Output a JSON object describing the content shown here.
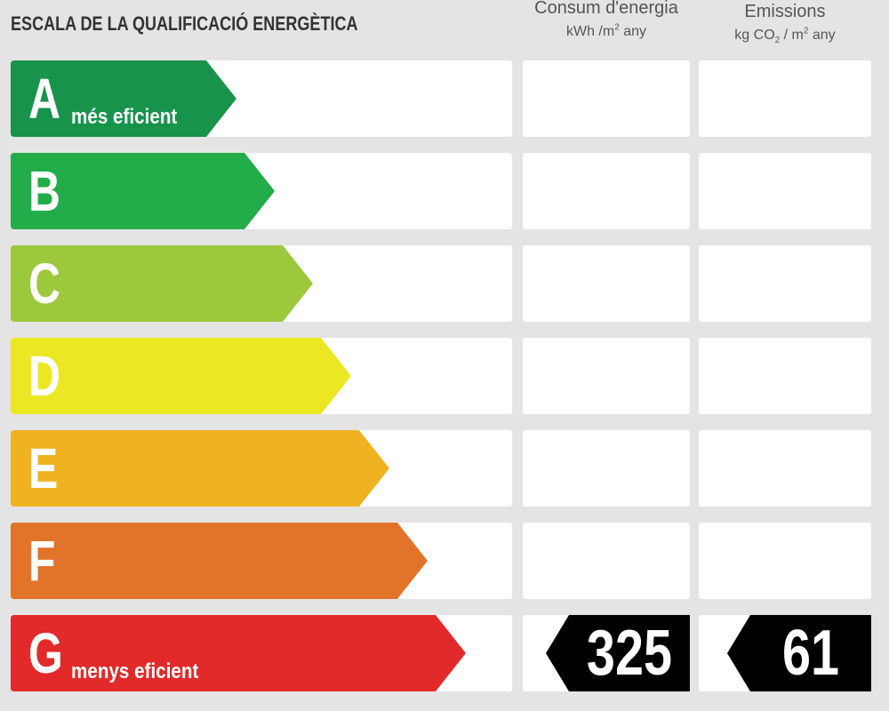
{
  "title": "ESCALA DE LA QUALIFICACIÓ ENERGÈTICA",
  "columns": {
    "consum": {
      "line1": "Consum d'energia",
      "unit_pre": "kWh /m",
      "unit_sup": "2",
      "unit_post": " any"
    },
    "emissions": {
      "line1": "Emissions",
      "unit_pre": "kg CO",
      "unit_sub": "2",
      "unit_mid": " / m",
      "unit_sup": "2",
      "unit_post": " any"
    }
  },
  "classes": [
    {
      "letter": "A",
      "note": "més eficient",
      "color": "#17934b"
    },
    {
      "letter": "B",
      "note": "",
      "color": "#22ad4a"
    },
    {
      "letter": "C",
      "note": "",
      "color": "#9cc93c"
    },
    {
      "letter": "D",
      "note": "",
      "color": "#ece723"
    },
    {
      "letter": "E",
      "note": "",
      "color": "#efb322"
    },
    {
      "letter": "F",
      "note": "",
      "color": "#e2742a"
    },
    {
      "letter": "G",
      "note": "menys eficient",
      "color": "#e22a2a"
    }
  ],
  "rating": {
    "class": "G",
    "consum_value": "325",
    "emissions_value": "61",
    "badge_color": "#000000"
  }
}
